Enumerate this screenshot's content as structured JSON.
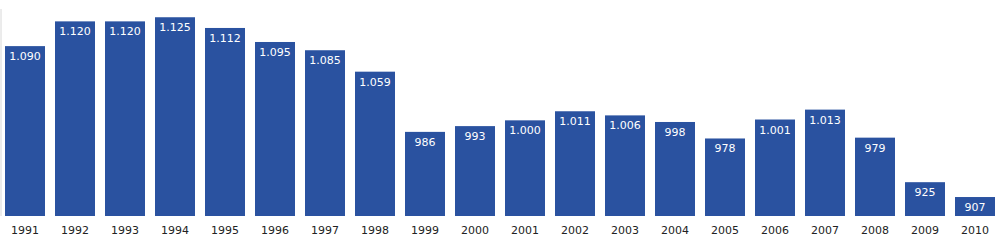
{
  "chart_data": {
    "type": "bar",
    "categories": [
      "1991",
      "1992",
      "1993",
      "1994",
      "1995",
      "1996",
      "1997",
      "1998",
      "1999",
      "2000",
      "2001",
      "2002",
      "2003",
      "2004",
      "2005",
      "2006",
      "2007",
      "2008",
      "2009",
      "2010"
    ],
    "values": [
      1090,
      1120,
      1120,
      1125,
      1112,
      1095,
      1085,
      1059,
      986,
      993,
      1000,
      1011,
      1006,
      998,
      978,
      1001,
      1013,
      979,
      925,
      907
    ],
    "value_labels": [
      "1.090",
      "1.120",
      "1.120",
      "1.125",
      "1.112",
      "1.095",
      "1.085",
      "1.059",
      "986",
      "993",
      "1.000",
      "1.011",
      "1.006",
      "998",
      "978",
      "1.001",
      "1.013",
      "979",
      "925",
      "907"
    ],
    "color": "#2a52a0",
    "ylim": [
      884,
      1135
    ],
    "data_labels": true,
    "tick_labels": "x",
    "grid": false
  }
}
